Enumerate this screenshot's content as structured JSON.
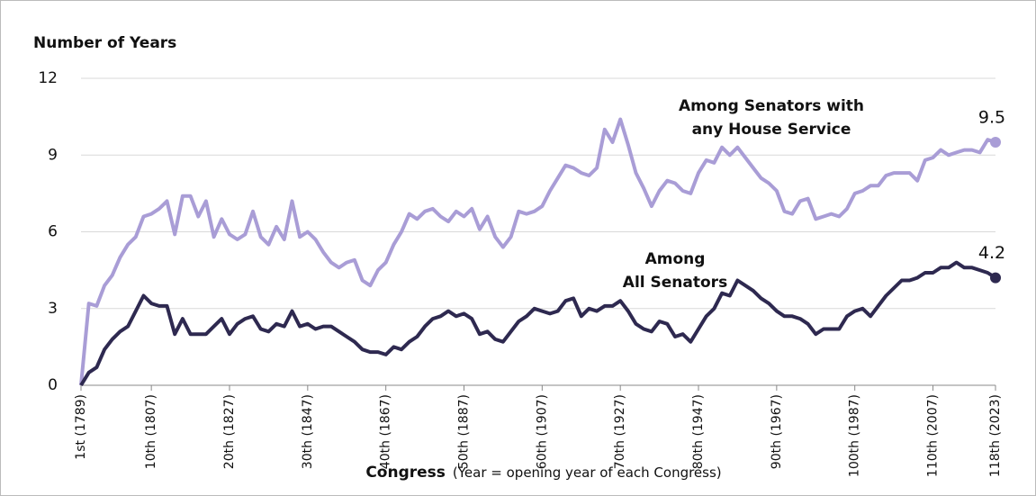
{
  "chart_data": {
    "type": "line",
    "ylabel": "Number of Years",
    "xlabel": "Congress",
    "xlabel_note": "(Year = opening year of each Congress)",
    "x": [
      1,
      2,
      3,
      4,
      5,
      6,
      7,
      8,
      9,
      10,
      11,
      12,
      13,
      14,
      15,
      16,
      17,
      18,
      19,
      20,
      21,
      22,
      23,
      24,
      25,
      26,
      27,
      28,
      29,
      30,
      31,
      32,
      33,
      34,
      35,
      36,
      37,
      38,
      39,
      40,
      41,
      42,
      43,
      44,
      45,
      46,
      47,
      48,
      49,
      50,
      51,
      52,
      53,
      54,
      55,
      56,
      57,
      58,
      59,
      60,
      61,
      62,
      63,
      64,
      65,
      66,
      67,
      68,
      69,
      70,
      71,
      72,
      73,
      74,
      75,
      76,
      77,
      78,
      79,
      80,
      81,
      82,
      83,
      84,
      85,
      86,
      87,
      88,
      89,
      90,
      91,
      92,
      93,
      94,
      95,
      96,
      97,
      98,
      99,
      100,
      101,
      102,
      103,
      104,
      105,
      106,
      107,
      108,
      109,
      110,
      111,
      112,
      113,
      114,
      115,
      116,
      117,
      118
    ],
    "series": [
      {
        "name": "Among Senators with any House Service",
        "name_lines": [
          "Among Senators with",
          "any House Service"
        ],
        "color": "#a99dd6",
        "values": [
          0,
          3.2,
          3.1,
          3.9,
          4.3,
          5.0,
          5.5,
          5.8,
          6.6,
          6.7,
          6.9,
          7.2,
          5.9,
          7.4,
          7.4,
          6.6,
          7.2,
          5.8,
          6.5,
          5.9,
          5.7,
          5.9,
          6.8,
          5.8,
          5.5,
          6.2,
          5.7,
          7.2,
          5.8,
          6.0,
          5.7,
          5.2,
          4.8,
          4.6,
          4.8,
          4.9,
          4.1,
          3.9,
          4.5,
          4.8,
          5.5,
          6.0,
          6.7,
          6.5,
          6.8,
          6.9,
          6.6,
          6.4,
          6.8,
          6.6,
          6.9,
          6.1,
          6.6,
          5.8,
          5.4,
          5.8,
          6.8,
          6.7,
          6.8,
          7.0,
          7.6,
          8.1,
          8.6,
          8.5,
          8.3,
          8.2,
          8.5,
          10.0,
          9.5,
          10.4,
          9.4,
          8.3,
          7.7,
          7.0,
          7.6,
          8.0,
          7.9,
          7.6,
          7.5,
          8.3,
          8.8,
          8.7,
          9.3,
          9.0,
          9.3,
          8.9,
          8.5,
          8.1,
          7.9,
          7.6,
          6.8,
          6.7,
          7.2,
          7.3,
          6.5,
          6.6,
          6.7,
          6.6,
          6.9,
          7.5,
          7.6,
          7.8,
          7.8,
          8.2,
          8.3,
          8.3,
          8.3,
          8.0,
          8.8,
          8.9,
          9.2,
          9.0,
          9.1,
          9.2,
          9.2,
          9.1,
          9.6,
          9.5
        ]
      },
      {
        "name": "Among All Senators",
        "name_lines": [
          "Among",
          "All Senators"
        ],
        "color": "#2e2950",
        "values": [
          0,
          0.5,
          0.7,
          1.4,
          1.8,
          2.1,
          2.3,
          2.9,
          3.5,
          3.2,
          3.1,
          3.1,
          2.0,
          2.6,
          2.0,
          2.0,
          2.0,
          2.3,
          2.6,
          2.0,
          2.4,
          2.6,
          2.7,
          2.2,
          2.1,
          2.4,
          2.3,
          2.9,
          2.3,
          2.4,
          2.2,
          2.3,
          2.3,
          2.1,
          1.9,
          1.7,
          1.4,
          1.3,
          1.3,
          1.2,
          1.5,
          1.4,
          1.7,
          1.9,
          2.3,
          2.6,
          2.7,
          2.9,
          2.7,
          2.8,
          2.6,
          2.0,
          2.1,
          1.8,
          1.7,
          2.1,
          2.5,
          2.7,
          3.0,
          2.9,
          2.8,
          2.9,
          3.3,
          3.4,
          2.7,
          3.0,
          2.9,
          3.1,
          3.1,
          3.3,
          2.9,
          2.4,
          2.2,
          2.1,
          2.5,
          2.4,
          1.9,
          2.0,
          1.7,
          2.2,
          2.7,
          3.0,
          3.6,
          3.5,
          4.1,
          3.9,
          3.7,
          3.4,
          3.2,
          2.9,
          2.7,
          2.7,
          2.6,
          2.4,
          2.0,
          2.2,
          2.2,
          2.2,
          2.7,
          2.9,
          3.0,
          2.7,
          3.1,
          3.5,
          3.8,
          4.1,
          4.1,
          4.2,
          4.4,
          4.4,
          4.6,
          4.6,
          4.8,
          4.6,
          4.6,
          4.5,
          4.4,
          4.2
        ]
      }
    ],
    "xlim": [
      1,
      118
    ],
    "xticks": [
      {
        "value": 1,
        "label": "1st (1789)"
      },
      {
        "value": 10,
        "label": "10th (1807)"
      },
      {
        "value": 20,
        "label": "20th (1827)"
      },
      {
        "value": 30,
        "label": "30th (1847)"
      },
      {
        "value": 40,
        "label": "40th (1867)"
      },
      {
        "value": 50,
        "label": "50th (1887)"
      },
      {
        "value": 60,
        "label": "60th (1907)"
      },
      {
        "value": 70,
        "label": "70th (1927)"
      },
      {
        "value": 80,
        "label": "80th (1947)"
      },
      {
        "value": 90,
        "label": "90th (1967)"
      },
      {
        "value": 100,
        "label": "100th (1987)"
      },
      {
        "value": 110,
        "label": "110th (2007)"
      },
      {
        "value": 118,
        "label": "118th (2023)"
      }
    ],
    "ylim": [
      0,
      12
    ],
    "yticks": [
      0,
      3,
      6,
      9,
      12
    ],
    "grid": true
  }
}
